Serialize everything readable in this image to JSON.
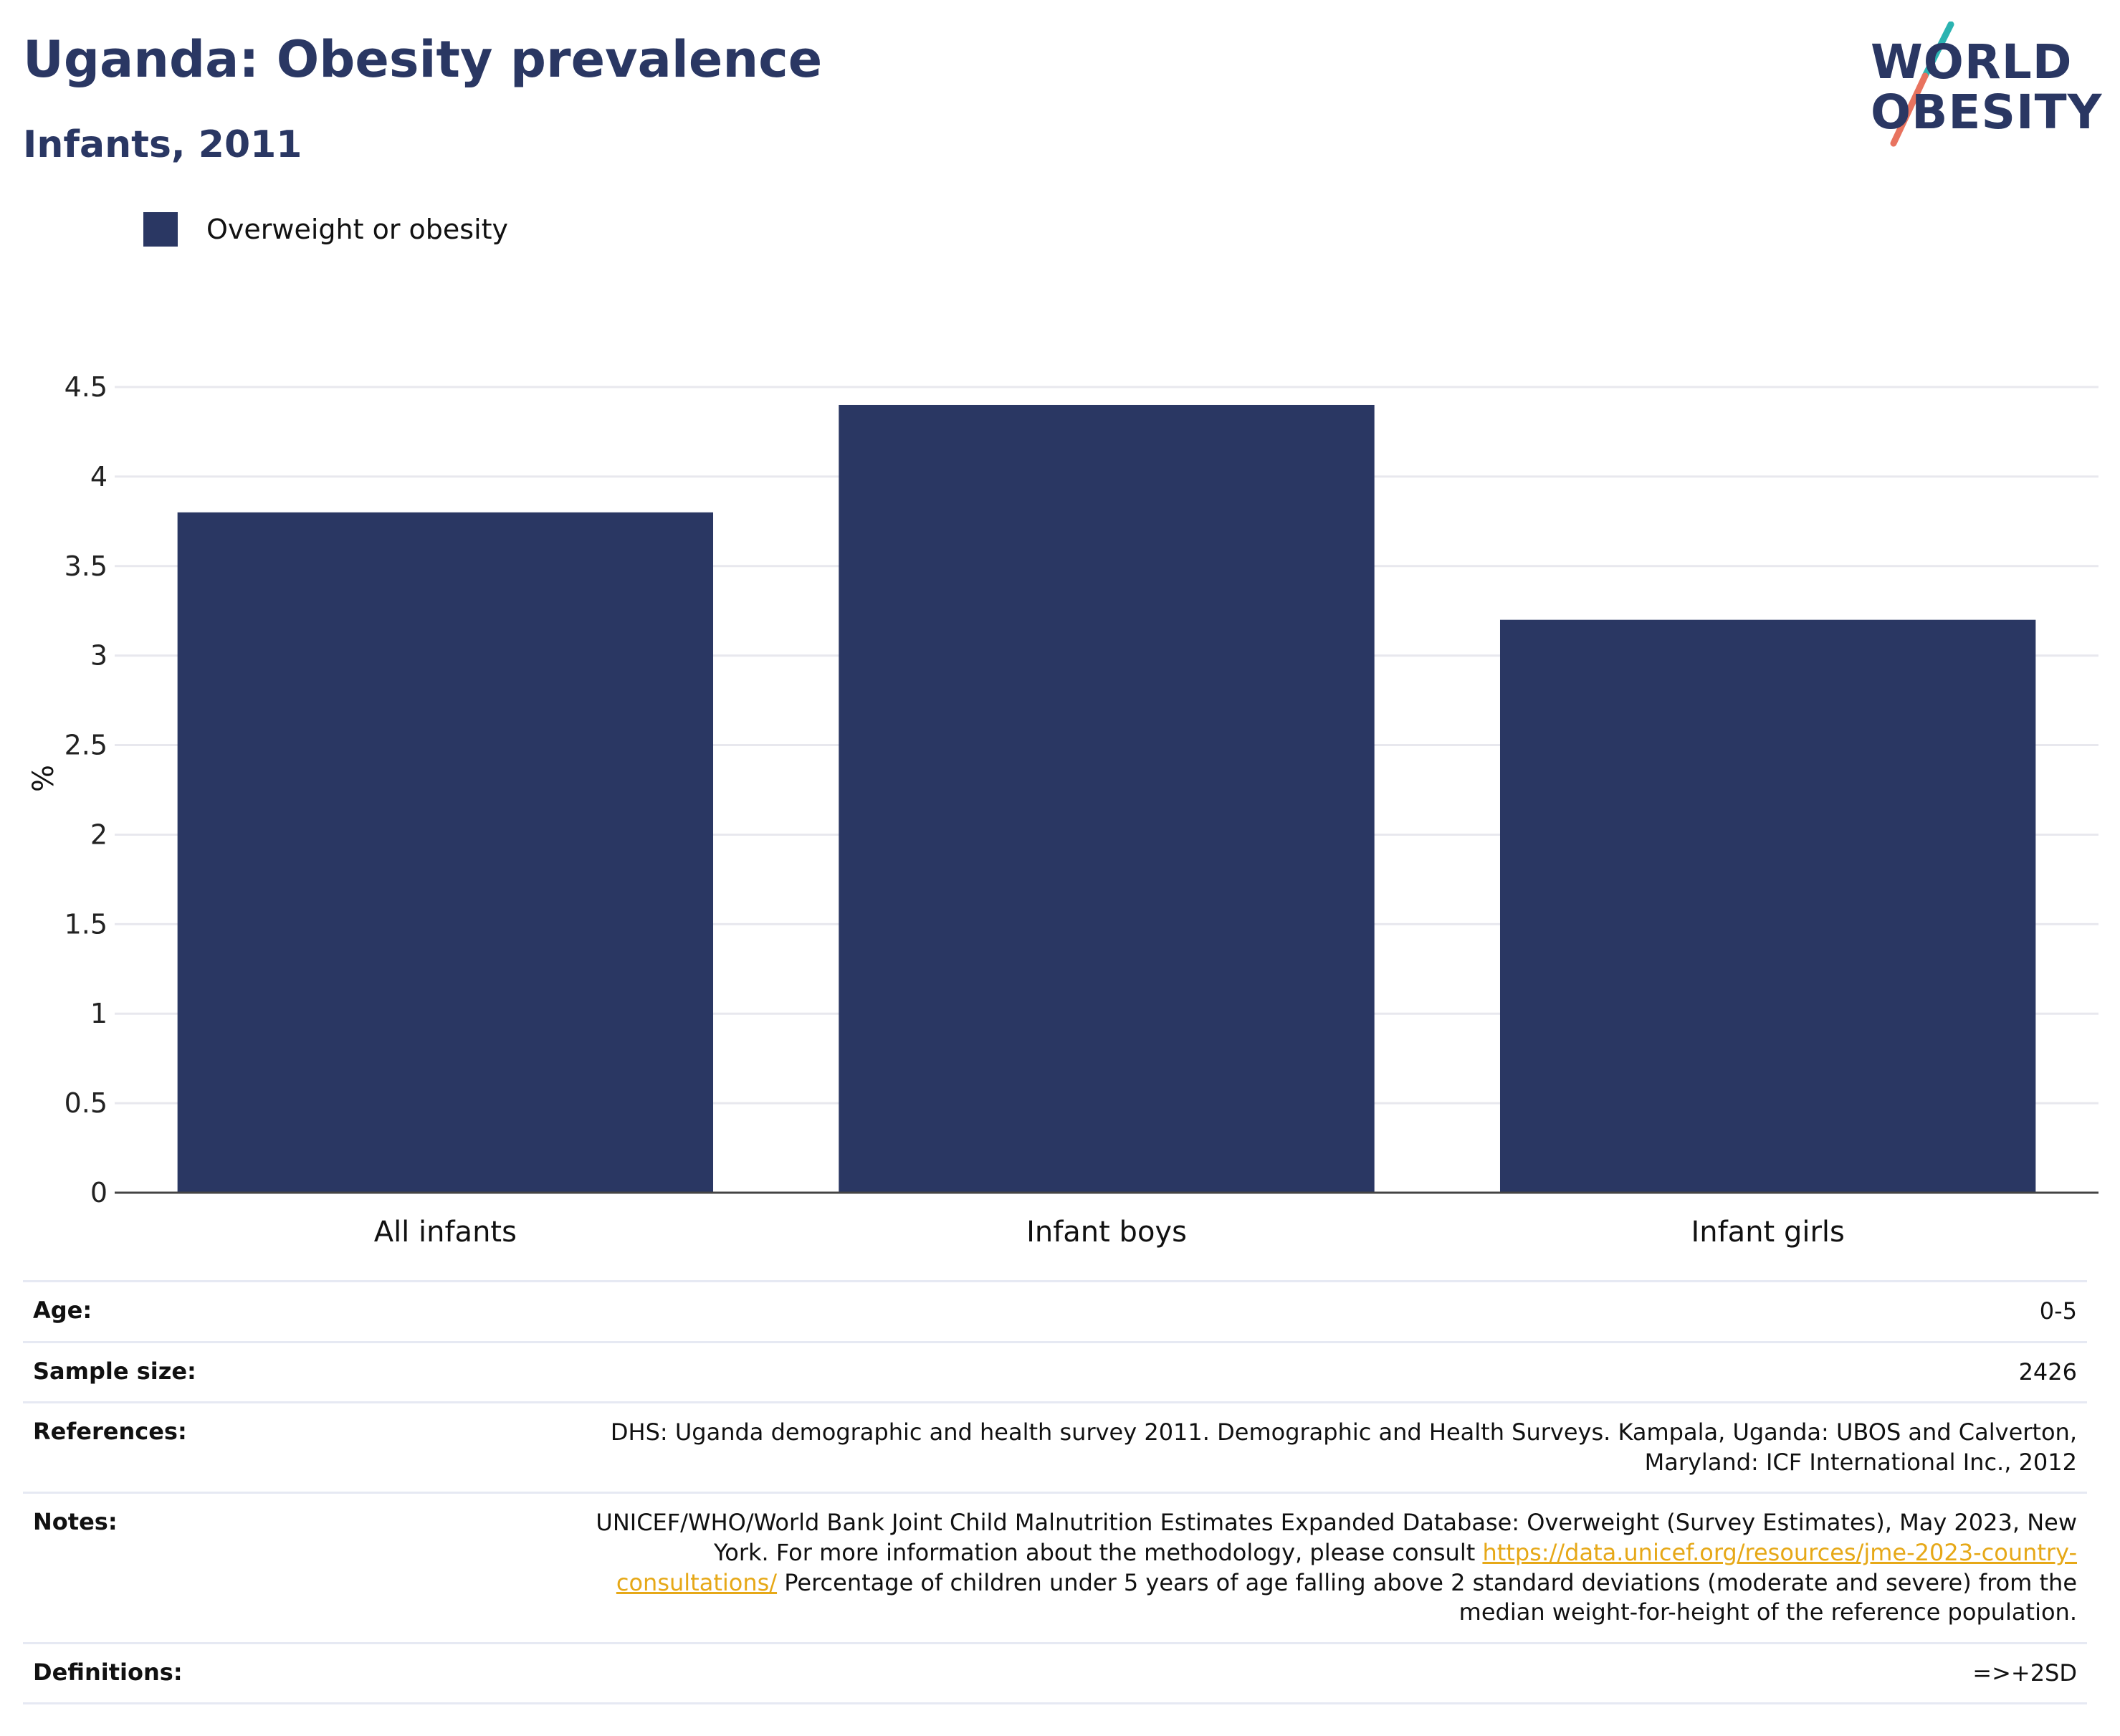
{
  "header": {
    "title": "Uganda: Obesity prevalence",
    "subtitle": "Infants, 2011"
  },
  "logo": {
    "line1": "WORLD",
    "line2": "OBESITY",
    "colors": {
      "teal": "#2bb3b1",
      "coral": "#e8735f",
      "navy": "#2a3763"
    }
  },
  "legend": {
    "label": "Overweight or obesity",
    "color": "#2a3763"
  },
  "chart_data": {
    "type": "bar",
    "categories": [
      "All infants",
      "Infant boys",
      "Infant girls"
    ],
    "series": [
      {
        "name": "Overweight or obesity",
        "values": [
          3.8,
          4.4,
          3.2
        ],
        "color": "#2a3763"
      }
    ],
    "ylabel": "%",
    "ylim": [
      0,
      4.5
    ],
    "yticks": [
      0,
      0.5,
      1,
      1.5,
      2,
      2.5,
      3,
      3.5,
      4,
      4.5
    ],
    "ytick_labels": [
      "0",
      "0.5",
      "1",
      "1.5",
      "2",
      "2.5",
      "3",
      "3.5",
      "4",
      "4.5"
    ],
    "grid": true
  },
  "info": {
    "age_label": "Age:",
    "age_value": "0-5",
    "sample_label": "Sample size:",
    "sample_value": "2426",
    "references_label": "References:",
    "references_value": "DHS: Uganda demographic and health survey 2011. Demographic and Health Surveys. Kampala, Uganda: UBOS and Calverton, Maryland: ICF International Inc., 2012",
    "notes_label": "Notes:",
    "notes_text_1": "UNICEF/WHO/World Bank Joint Child Malnutrition Estimates Expanded Database: Overweight (Survey Estimates), May 2023, New York. For more information about the methodology, please consult ",
    "notes_link": "https://data.unicef.org/resources/jme-2023-country-consultations/",
    "notes_text_2": "Percentage of children under 5 years of age falling above 2 standard deviations (moderate and severe) from the median weight-for-height of the reference population.",
    "definitions_label": "Definitions:",
    "definitions_value": "=>+2SD"
  }
}
